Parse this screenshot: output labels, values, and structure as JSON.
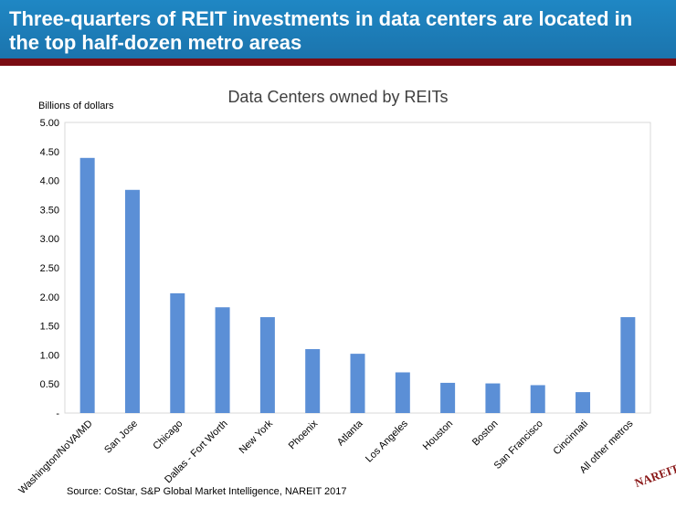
{
  "header": {
    "title": "Three-quarters of REIT investments in data centers are located in the top half-dozen metro areas"
  },
  "colors": {
    "header_bg": "#1f87c4",
    "header_rule": "#7a0c13",
    "bar": "#5b8fd6",
    "grid": "#d9d9d9",
    "logo": "#8b1a1a"
  },
  "chart_data": {
    "type": "bar",
    "title": "Data Centers owned by REITs",
    "ylabel": "Billions of dollars",
    "xlabel": "",
    "ylim": [
      0,
      5
    ],
    "yticks": [
      0,
      0.5,
      1,
      1.5,
      2,
      2.5,
      3,
      3.5,
      4,
      4.5,
      5
    ],
    "ytick_labels": [
      "-",
      "0.50",
      "1.00",
      "1.50",
      "2.00",
      "2.50",
      "3.00",
      "3.50",
      "4.00",
      "4.50",
      "5.00"
    ],
    "categories": [
      "Washington/NoVA/MD",
      "San Jose",
      "Chicago",
      "Dallas - Fort Worth",
      "New York",
      "Phoenix",
      "Atlanta",
      "Los Angeles",
      "Houston",
      "Boston",
      "San Francisco",
      "Cincinnati",
      "All other metros"
    ],
    "values": [
      4.39,
      3.84,
      2.06,
      1.82,
      1.65,
      1.1,
      1.02,
      0.7,
      0.52,
      0.51,
      0.48,
      0.36,
      1.65
    ],
    "grid": false,
    "legend": "none"
  },
  "source": {
    "text": "Source: CoStar, S&P Global Market Intelligence, NAREIT 2017"
  },
  "logo": {
    "text": "NAREIT"
  }
}
